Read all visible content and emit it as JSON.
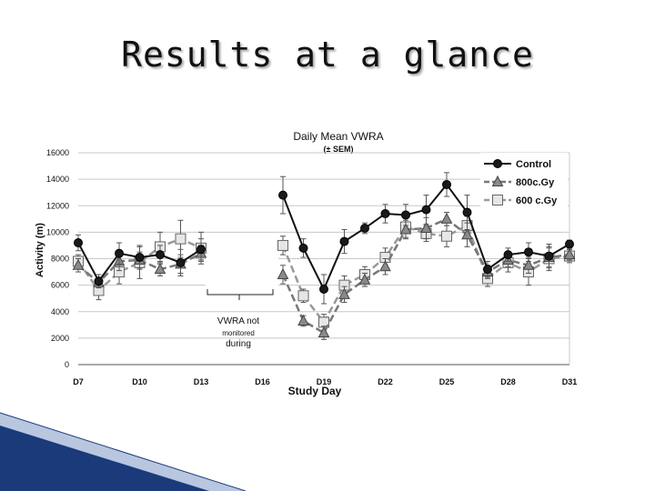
{
  "slide": {
    "title": "Results at a glance"
  },
  "chart_data": {
    "type": "line",
    "title": "Daily Mean VWRA",
    "subtitle": "(± SEM)",
    "xlabel": "Study Day",
    "ylabel": "Activity (m)",
    "ylim": [
      0,
      16000
    ],
    "yticks": [
      0,
      2000,
      4000,
      6000,
      8000,
      10000,
      12000,
      14000,
      16000
    ],
    "xlim": [
      7,
      31
    ],
    "xticks": [
      7,
      10,
      13,
      16,
      19,
      22,
      25,
      28,
      31
    ],
    "xtick_labels": [
      "D7",
      "D10",
      "D13",
      "D16",
      "D19",
      "D22",
      "D25",
      "D28",
      "D31"
    ],
    "grid": true,
    "legend_position": "top-right",
    "annotation": {
      "lines": [
        "VWRA not",
        "monitored",
        "during"
      ]
    },
    "series": [
      {
        "name": "Control",
        "marker": "circle",
        "color": "#111111",
        "dashed": false,
        "x": [
          7,
          8,
          9,
          10,
          11,
          12,
          13,
          17,
          18,
          19,
          20,
          21,
          22,
          23,
          24,
          25,
          26,
          27,
          28,
          29,
          30,
          31
        ],
        "values": [
          9200,
          6300,
          8400,
          8100,
          8300,
          7700,
          8700,
          12800,
          8800,
          5700,
          9300,
          10300,
          11400,
          11300,
          11700,
          13600,
          11500,
          7200,
          8300,
          8500,
          8200,
          9100
        ],
        "sem": [
          600,
          500,
          800,
          900,
          700,
          1000,
          800,
          1400,
          700,
          1100,
          900,
          400,
          700,
          800,
          1100,
          900,
          1300,
          600,
          500,
          700,
          900,
          300
        ]
      },
      {
        "name": "800c.Gy",
        "marker": "triangle",
        "color": "#777777",
        "dashed": true,
        "x": [
          7,
          8,
          9,
          10,
          11,
          12,
          13,
          17,
          18,
          19,
          20,
          21,
          22,
          23,
          24,
          25,
          26,
          27,
          28,
          29,
          30,
          31
        ],
        "values": [
          7500,
          6200,
          7800,
          7900,
          7200,
          7600,
          8400,
          6800,
          3300,
          2400,
          5300,
          6400,
          7400,
          10200,
          10300,
          11000,
          9800,
          7000,
          7900,
          7500,
          8100,
          8300
        ],
        "sem": [
          500,
          400,
          700,
          600,
          500,
          700,
          600,
          700,
          400,
          500,
          600,
          500,
          600,
          700,
          800,
          500,
          900,
          500,
          500,
          600,
          700,
          400
        ]
      },
      {
        "name": "600 c.Gy",
        "marker": "square",
        "color": "#999999",
        "dashed": true,
        "x": [
          7,
          8,
          9,
          10,
          11,
          12,
          13,
          17,
          18,
          19,
          20,
          21,
          22,
          23,
          24,
          25,
          26,
          27,
          28,
          29,
          30,
          31
        ],
        "values": [
          7800,
          5600,
          7000,
          7700,
          8900,
          9500,
          8800,
          9000,
          5200,
          3200,
          6000,
          6800,
          8100,
          10400,
          9900,
          9700,
          10500,
          6500,
          7700,
          7000,
          8000,
          8200
        ],
        "sem": [
          500,
          700,
          900,
          1200,
          1100,
          1400,
          1200,
          700,
          500,
          600,
          700,
          600,
          700,
          800,
          600,
          800,
          700,
          600,
          700,
          1000,
          900,
          500
        ]
      }
    ]
  }
}
